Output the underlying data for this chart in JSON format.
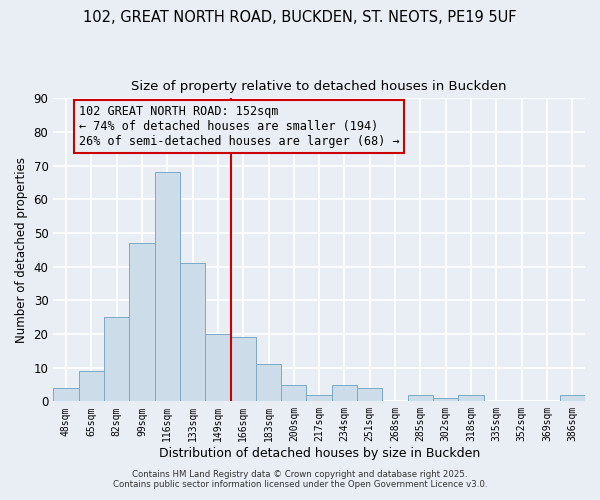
{
  "title1": "102, GREAT NORTH ROAD, BUCKDEN, ST. NEOTS, PE19 5UF",
  "title2": "Size of property relative to detached houses in Buckden",
  "xlabel": "Distribution of detached houses by size in Buckden",
  "ylabel": "Number of detached properties",
  "bin_labels": [
    "48sqm",
    "65sqm",
    "82sqm",
    "99sqm",
    "116sqm",
    "133sqm",
    "149sqm",
    "166sqm",
    "183sqm",
    "200sqm",
    "217sqm",
    "234sqm",
    "251sqm",
    "268sqm",
    "285sqm",
    "302sqm",
    "318sqm",
    "335sqm",
    "352sqm",
    "369sqm",
    "386sqm"
  ],
  "bar_heights": [
    4,
    9,
    25,
    47,
    68,
    41,
    20,
    19,
    11,
    5,
    2,
    5,
    4,
    0,
    2,
    1,
    2,
    0,
    0,
    0,
    2
  ],
  "bar_color": "#ccdce8",
  "bar_edge_color": "#7aaac8",
  "vline_x": 6.5,
  "vline_color": "#cc0000",
  "ylim": [
    0,
    90
  ],
  "yticks": [
    0,
    10,
    20,
    30,
    40,
    50,
    60,
    70,
    80,
    90
  ],
  "annotation_title": "102 GREAT NORTH ROAD: 152sqm",
  "annotation_line1": "← 74% of detached houses are smaller (194)",
  "annotation_line2": "26% of semi-detached houses are larger (68) →",
  "annotation_box_color": "#cc0000",
  "footer1": "Contains HM Land Registry data © Crown copyright and database right 2025.",
  "footer2": "Contains public sector information licensed under the Open Government Licence v3.0.",
  "bg_color": "#e8eef4",
  "grid_color": "#ffffff",
  "title_fontsize": 10.5,
  "subtitle_fontsize": 9.5,
  "ann_fontsize": 8.5
}
